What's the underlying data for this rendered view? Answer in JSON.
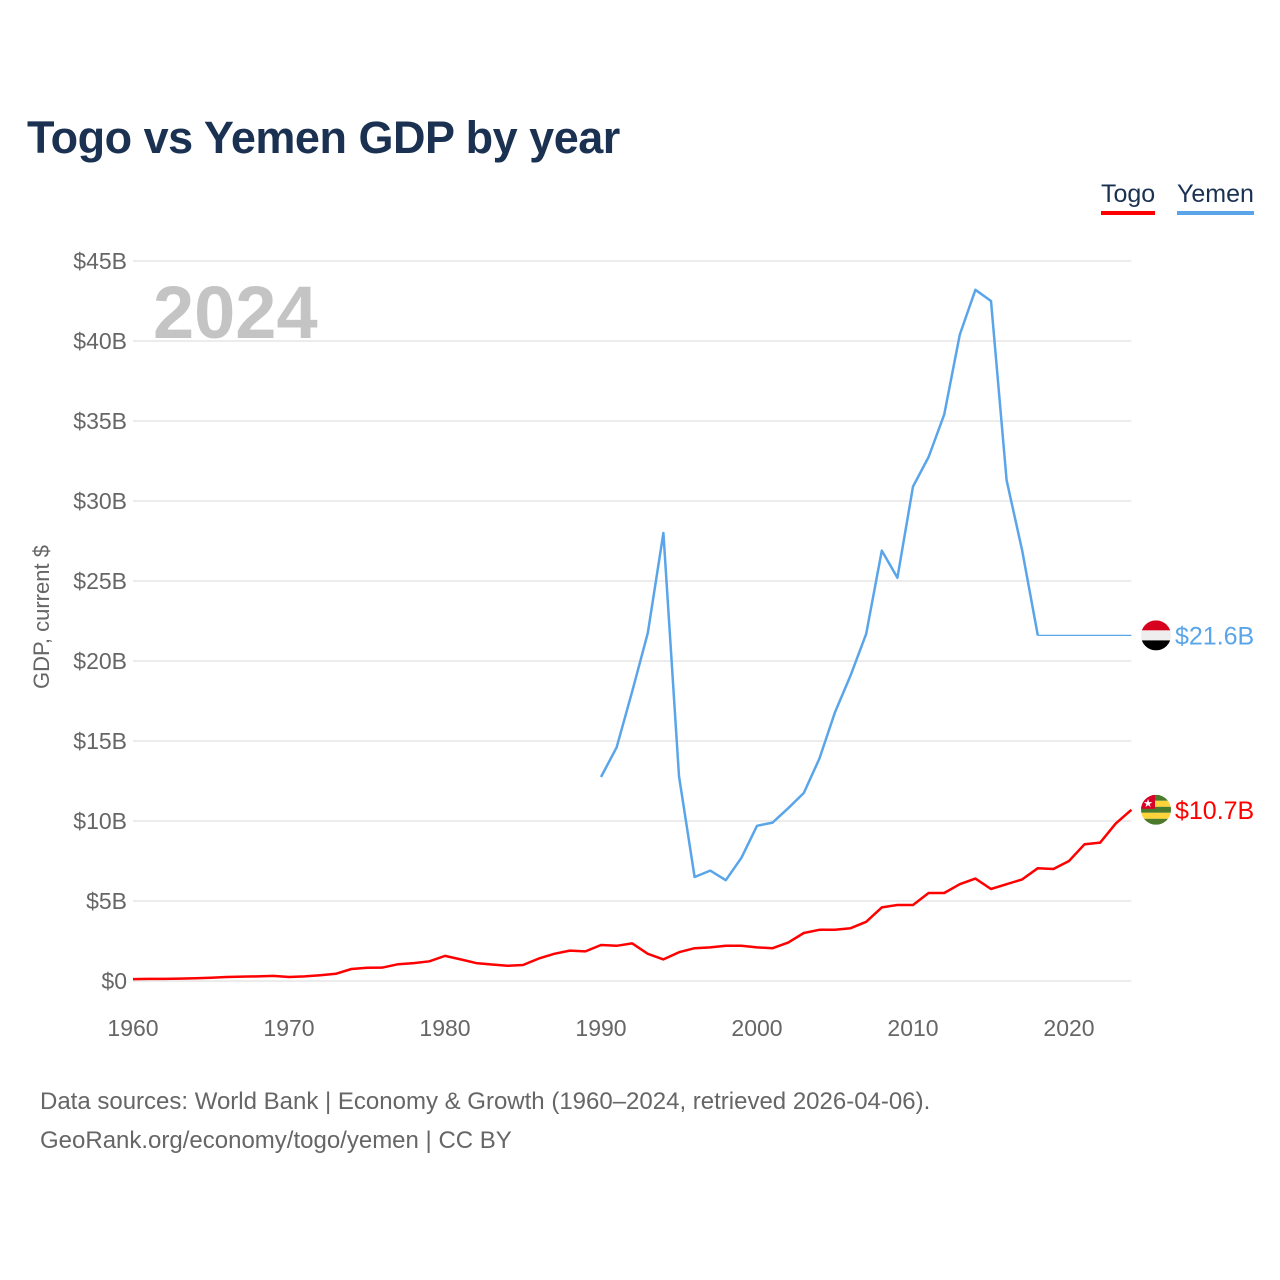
{
  "title": "Togo vs Yemen GDP by year",
  "legend": [
    {
      "label": "Togo",
      "color": "#ff0000"
    },
    {
      "label": "Yemen",
      "color": "#5aa5ea"
    }
  ],
  "year_watermark": "2024",
  "footer": {
    "line1": "Data sources: World Bank | Economy & Growth (1960–2024, retrieved 2026-04-06).",
    "line2": "GeoRank.org/economy/togo/yemen | CC BY"
  },
  "chart_data": {
    "type": "line",
    "title": "Togo vs Yemen GDP by year",
    "xlabel": "",
    "ylabel": "GDP, current $",
    "xlim": [
      1960,
      2024
    ],
    "ylim": [
      0,
      45
    ],
    "grid": true,
    "legend_position": "top-right",
    "x_ticks": [
      1960,
      1970,
      1980,
      1990,
      2000,
      2010,
      2020
    ],
    "y_ticks": [
      0,
      5,
      10,
      15,
      20,
      25,
      30,
      35,
      40,
      45
    ],
    "y_tick_labels": [
      "$0",
      "$5B",
      "$10B",
      "$15B",
      "$20B",
      "$25B",
      "$30B",
      "$35B",
      "$40B",
      "$45B"
    ],
    "series": [
      {
        "name": "Togo",
        "color": "#ff0000",
        "end_label": "$10.7B",
        "flag": "togo-flag",
        "x_start": 1960,
        "values": [
          0.12,
          0.13,
          0.13,
          0.15,
          0.17,
          0.2,
          0.25,
          0.27,
          0.29,
          0.32,
          0.25,
          0.29,
          0.36,
          0.45,
          0.75,
          0.83,
          0.84,
          1.05,
          1.12,
          1.23,
          1.57,
          1.35,
          1.12,
          1.03,
          0.95,
          1.0,
          1.4,
          1.7,
          1.9,
          1.85,
          2.25,
          2.2,
          2.35,
          1.7,
          1.35,
          1.8,
          2.05,
          2.1,
          2.2,
          2.2,
          2.1,
          2.05,
          2.4,
          3.0,
          3.2,
          3.2,
          3.3,
          3.7,
          4.6,
          4.75,
          4.75,
          5.5,
          5.5,
          6.05,
          6.4,
          5.75,
          6.05,
          6.35,
          7.05,
          7.0,
          7.5,
          8.55,
          8.65,
          9.85,
          10.7
        ]
      },
      {
        "name": "Yemen",
        "color": "#5aa5ea",
        "end_label": "$21.6B",
        "flag": "yemen-flag",
        "x_start": 1990,
        "values": [
          12.75,
          14.6,
          18.1,
          21.75,
          28.0,
          12.8,
          6.5,
          6.9,
          6.3,
          7.7,
          9.7,
          9.9,
          10.8,
          11.75,
          13.9,
          16.8,
          19.1,
          21.7,
          26.9,
          25.2,
          30.9,
          32.75,
          35.4,
          40.4,
          43.2,
          42.5,
          31.3,
          26.9,
          21.6
        ],
        "carried_forward_to": 2024
      }
    ]
  }
}
